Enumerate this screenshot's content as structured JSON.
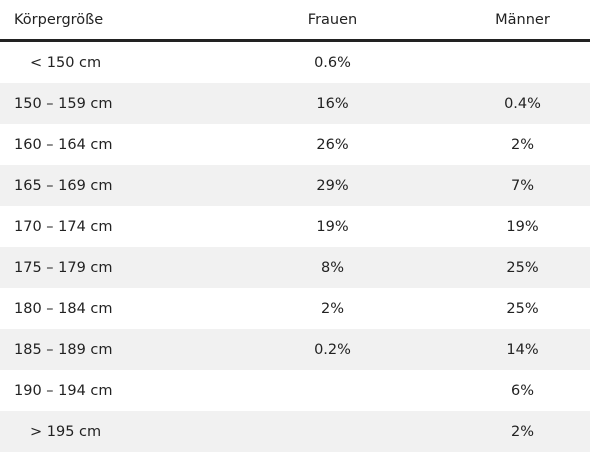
{
  "table": {
    "headers": {
      "height": "Körpergröße",
      "women": "Frauen",
      "men": "Männer"
    },
    "rows": [
      {
        "range": "< 150 cm",
        "women": "0.6%",
        "men": ""
      },
      {
        "range": "150 – 159 cm",
        "women": "16%",
        "men": "0.4%"
      },
      {
        "range": "160 – 164 cm",
        "women": "26%",
        "men": "2%"
      },
      {
        "range": "165 – 169 cm",
        "women": "29%",
        "men": "7%"
      },
      {
        "range": "170 – 174 cm",
        "women": "19%",
        "men": "19%"
      },
      {
        "range": "175 – 179 cm",
        "women": "8%",
        "men": "25%"
      },
      {
        "range": "180 – 184 cm",
        "women": "2%",
        "men": "25%"
      },
      {
        "range": "185 – 189 cm",
        "women": "0.2%",
        "men": "14%"
      },
      {
        "range": "190 – 194 cm",
        "women": "",
        "men": "6%"
      },
      {
        "range": "> 195 cm",
        "women": "",
        "men": "2%"
      }
    ]
  }
}
